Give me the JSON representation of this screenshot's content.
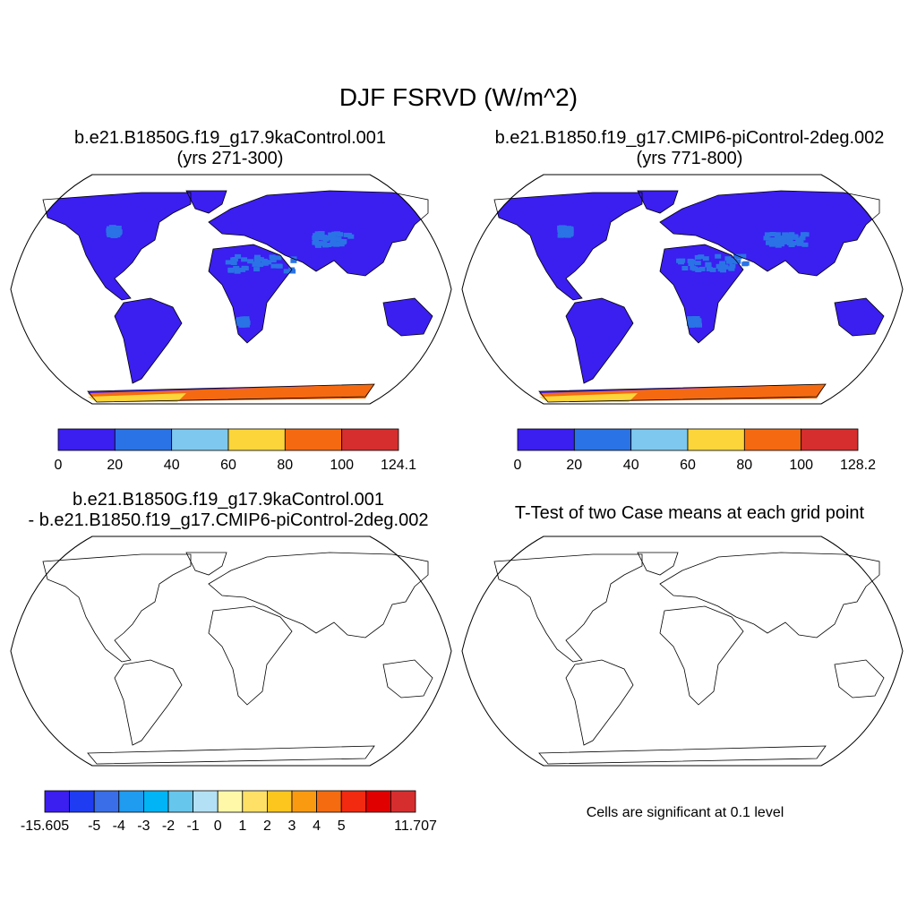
{
  "figure": {
    "title": "DJF FSRVD (W/m^2)",
    "note": "Cells are significant at 0.1 level"
  },
  "panels": [
    {
      "id": "case1",
      "title_line1": "b.e21.B1850G.f19_g17.9kaControl.001",
      "title_line2": "(yrs 271-300)",
      "colorbar": {
        "labels": [
          "0",
          "20",
          "40",
          "60",
          "80",
          "100",
          "124.1"
        ],
        "colors": [
          "#3b1ef0",
          "#2a73e6",
          "#7ec8ef",
          "#fbd53a",
          "#f56a10",
          "#d62e2e"
        ]
      }
    },
    {
      "id": "case2",
      "title_line1": "b.e21.B1850.f19_g17.CMIP6-piControl-2deg.002",
      "title_line2": "(yrs 771-800)",
      "colorbar": {
        "labels": [
          "0",
          "20",
          "40",
          "60",
          "80",
          "100",
          "128.2"
        ],
        "colors": [
          "#3b1ef0",
          "#2a73e6",
          "#7ec8ef",
          "#fbd53a",
          "#f56a10",
          "#d62e2e"
        ]
      }
    },
    {
      "id": "difference",
      "title_line1": "b.e21.B1850G.f19_g17.9kaControl.001",
      "title_line2": "- b.e21.B1850.f19_g17.CMIP6-piControl-2deg.002",
      "colorbar": {
        "labels": [
          "-15.605",
          "-5",
          "-4",
          "-3",
          "-2",
          "-1",
          "0",
          "1",
          "2",
          "3",
          "4",
          "5",
          "11.707"
        ],
        "colors": [
          "#3b1ef0",
          "#1f3cf2",
          "#3a6ee8",
          "#1f9bf0",
          "#00b4f5",
          "#66c6ec",
          "#b3e0f5",
          "#fff8a8",
          "#ffe066",
          "#fcc61e",
          "#f99a10",
          "#f46b10",
          "#f22a10",
          "#e00000",
          "#d62e2e"
        ]
      }
    },
    {
      "id": "ttest",
      "title_line1": "T-Test of two Case means at each grid point",
      "significance_color": "#e60000"
    }
  ],
  "colors": {
    "ocean": "#ffffff",
    "outline": "#000000",
    "land_case": "#3b1ef0",
    "land_case_light": "#2a73e6",
    "antarctic_warm": "#f56a10",
    "diff_neutral_light": "#b3e0f5",
    "diff_neutral_yellow": "#fff8a8"
  }
}
